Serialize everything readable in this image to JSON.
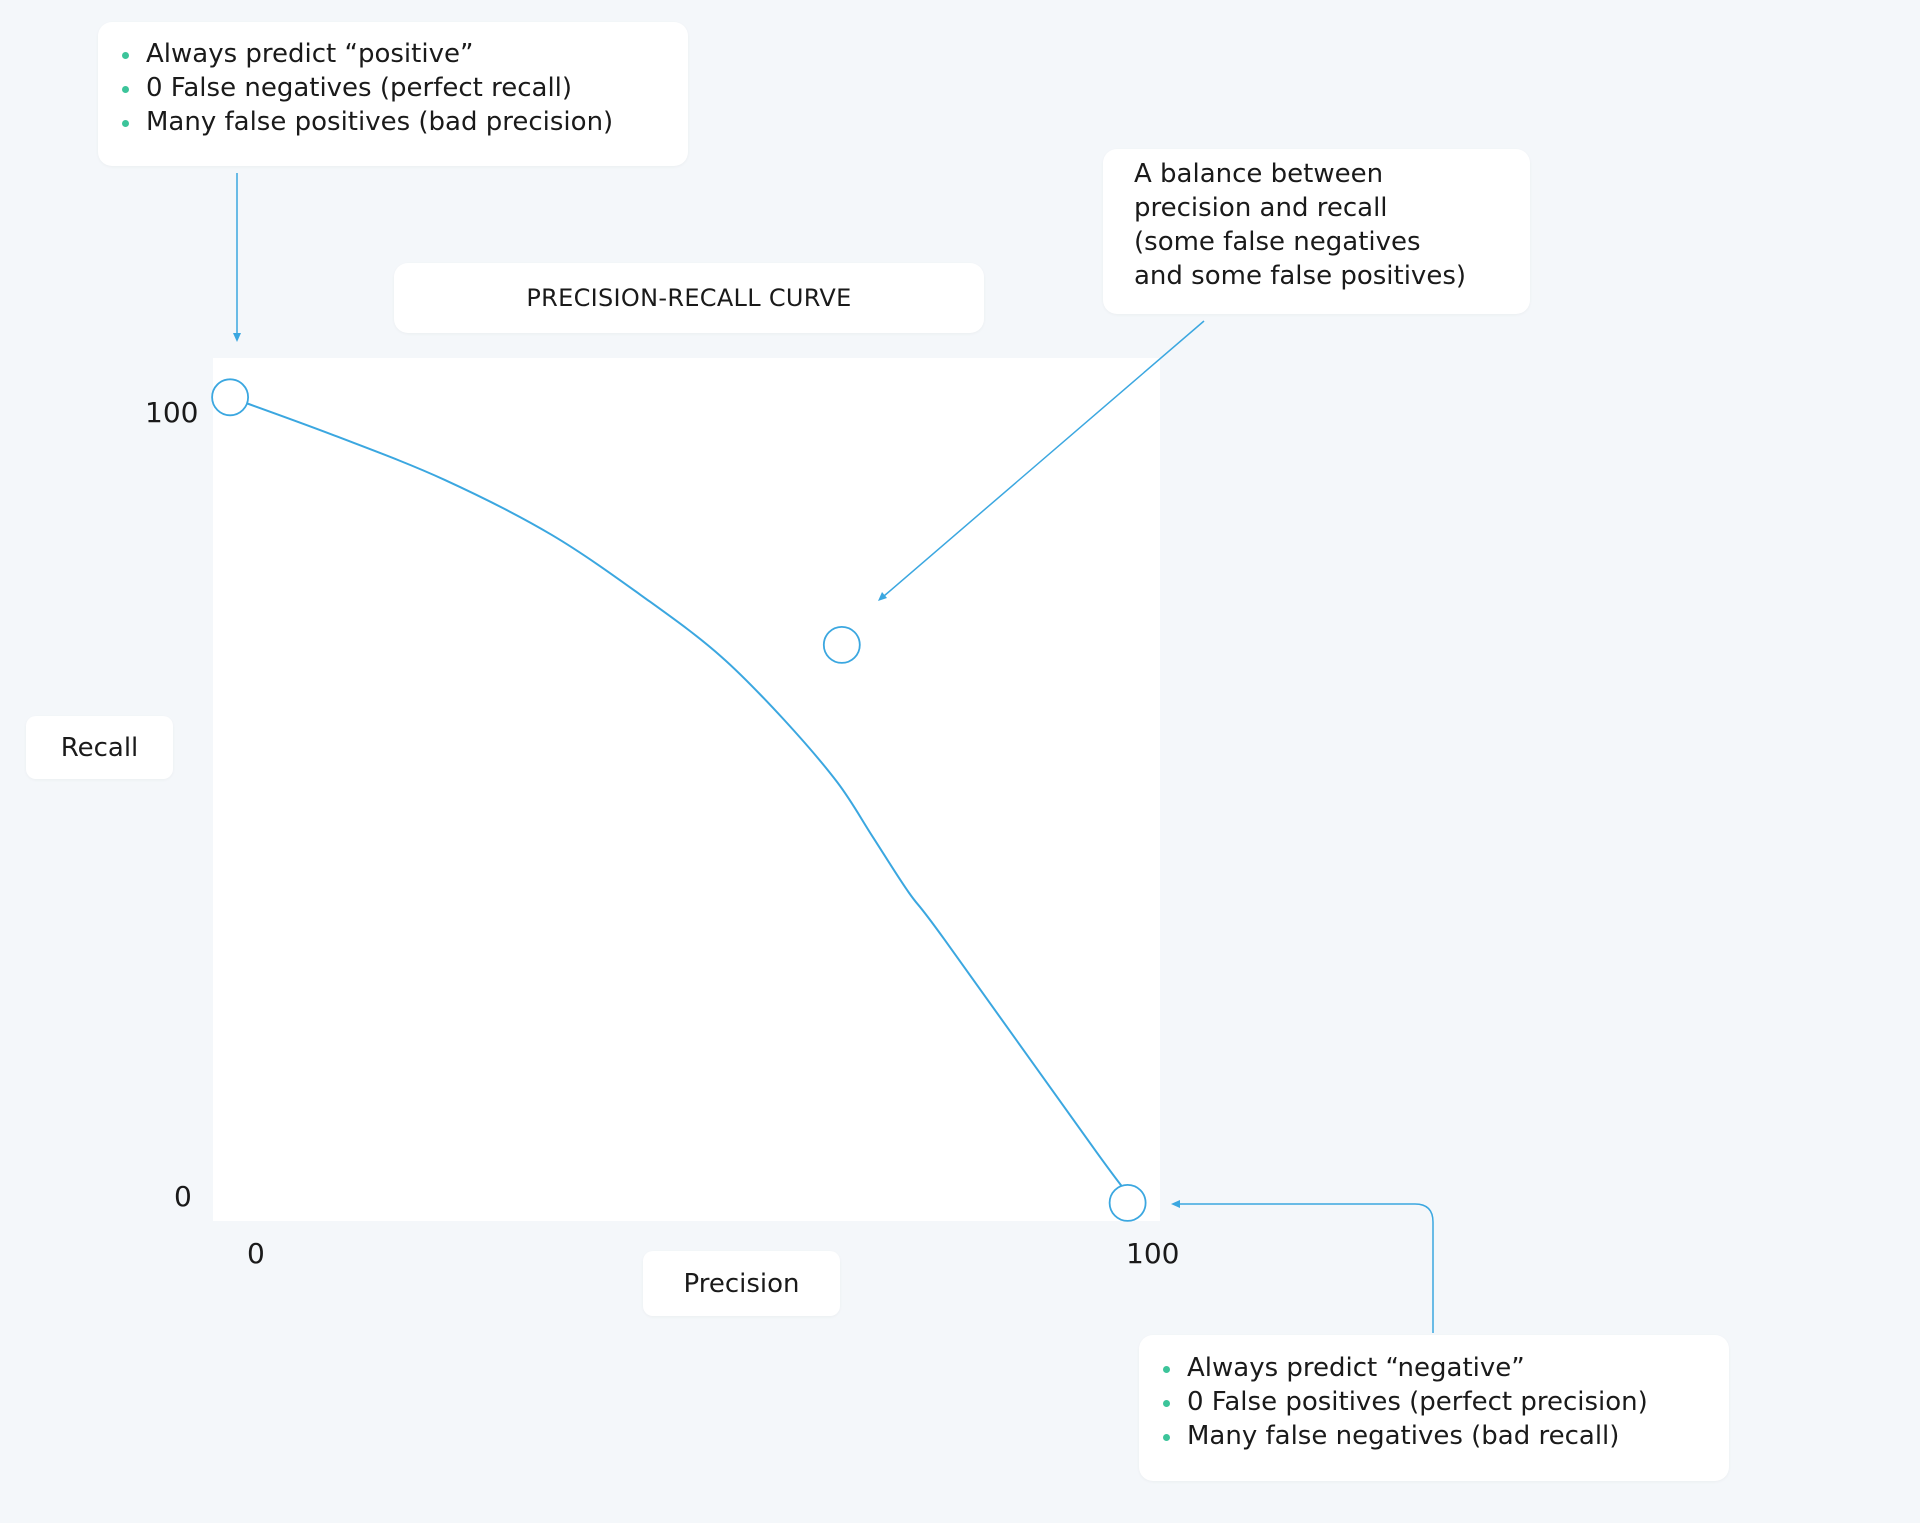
{
  "chart_data": {
    "type": "line",
    "title": "PRECISION-RECALL CURVE",
    "xlabel": "Precision",
    "ylabel": "Recall",
    "xlim": [
      0,
      100
    ],
    "ylim": [
      0,
      100
    ],
    "x_ticks": [
      "0",
      "100"
    ],
    "y_ticks": [
      "0",
      "100"
    ],
    "grid": false,
    "series": [
      {
        "x": [
          -2,
          10,
          22,
          34,
          45,
          53,
          60,
          66,
          70,
          74,
          78,
          95,
          99
        ],
        "y": [
          102,
          97,
          91.5,
          84.5,
          76,
          69,
          61,
          53,
          46,
          39,
          33,
          6,
          0
        ]
      }
    ],
    "highlighted_points": [
      {
        "x": -2,
        "y": 102
      },
      {
        "x": 66.5,
        "y": 70.5
      },
      {
        "x": 98.5,
        "y": -0.5
      }
    ],
    "annotations": {
      "top": [
        "Always predict “positive”",
        "0 False negatives (perfect recall)",
        "Many false positives (bad precision)"
      ],
      "balance": [
        "A balance between",
        "precision and recall",
        "(some false negatives",
        "and some false positives)"
      ],
      "bottom": [
        "Always predict “negative”",
        "0 False positives (perfect precision)",
        "Many false negatives (bad recall)"
      ]
    }
  },
  "colors": {
    "background": "#f4f7fa",
    "plot_area": "#ffffff",
    "line": "#3ba7e0",
    "bullet": "#3cc49a"
  }
}
